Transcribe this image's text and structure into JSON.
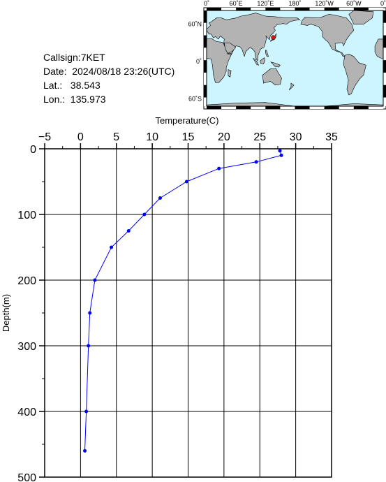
{
  "header": {
    "callsign": "Callsign:7KET",
    "date": "Date:  2024/08/18 23:26(UTC)",
    "lat": "Lat.:   38.543",
    "lon": "Lon.:  135.973"
  },
  "map": {
    "top_labels": [
      "0˚",
      "60˚E",
      "120˚E",
      "180˚",
      "120˚W",
      "60˚W",
      "0˚"
    ],
    "lon_values": [
      0,
      60,
      120,
      180,
      240,
      300,
      360
    ],
    "left_labels": [
      "60˚N",
      "0˚",
      "60˚S"
    ],
    "lat_values": [
      60,
      0,
      -60
    ],
    "ocean_color": "#ccf5ff",
    "land_color": "#b3b3b3",
    "marker": {
      "lat": 38.543,
      "lon": 135.973,
      "color": "#ff0000"
    }
  },
  "chart_data": {
    "type": "line",
    "title": "",
    "xlabel": "Temperature(C)",
    "ylabel": "Depth(m)",
    "xlim": [
      -5,
      35
    ],
    "ylim": [
      500,
      0
    ],
    "x_ticks": [
      "−5",
      "0",
      "5",
      "10",
      "15",
      "20",
      "25",
      "30",
      "35"
    ],
    "y_ticks": [
      "0",
      "100",
      "200",
      "300",
      "400",
      "500"
    ],
    "grid": true,
    "line_color": "#0000ff",
    "series": [
      {
        "x": [
          27.8,
          28.0,
          24.5,
          19.3,
          14.8,
          11.1,
          8.9,
          6.7,
          4.3,
          2.0,
          1.3,
          1.1,
          0.8,
          0.6
        ],
        "y": [
          3,
          10,
          20,
          30,
          50,
          75,
          100,
          125,
          150,
          200,
          250,
          300,
          400,
          460
        ]
      }
    ]
  }
}
